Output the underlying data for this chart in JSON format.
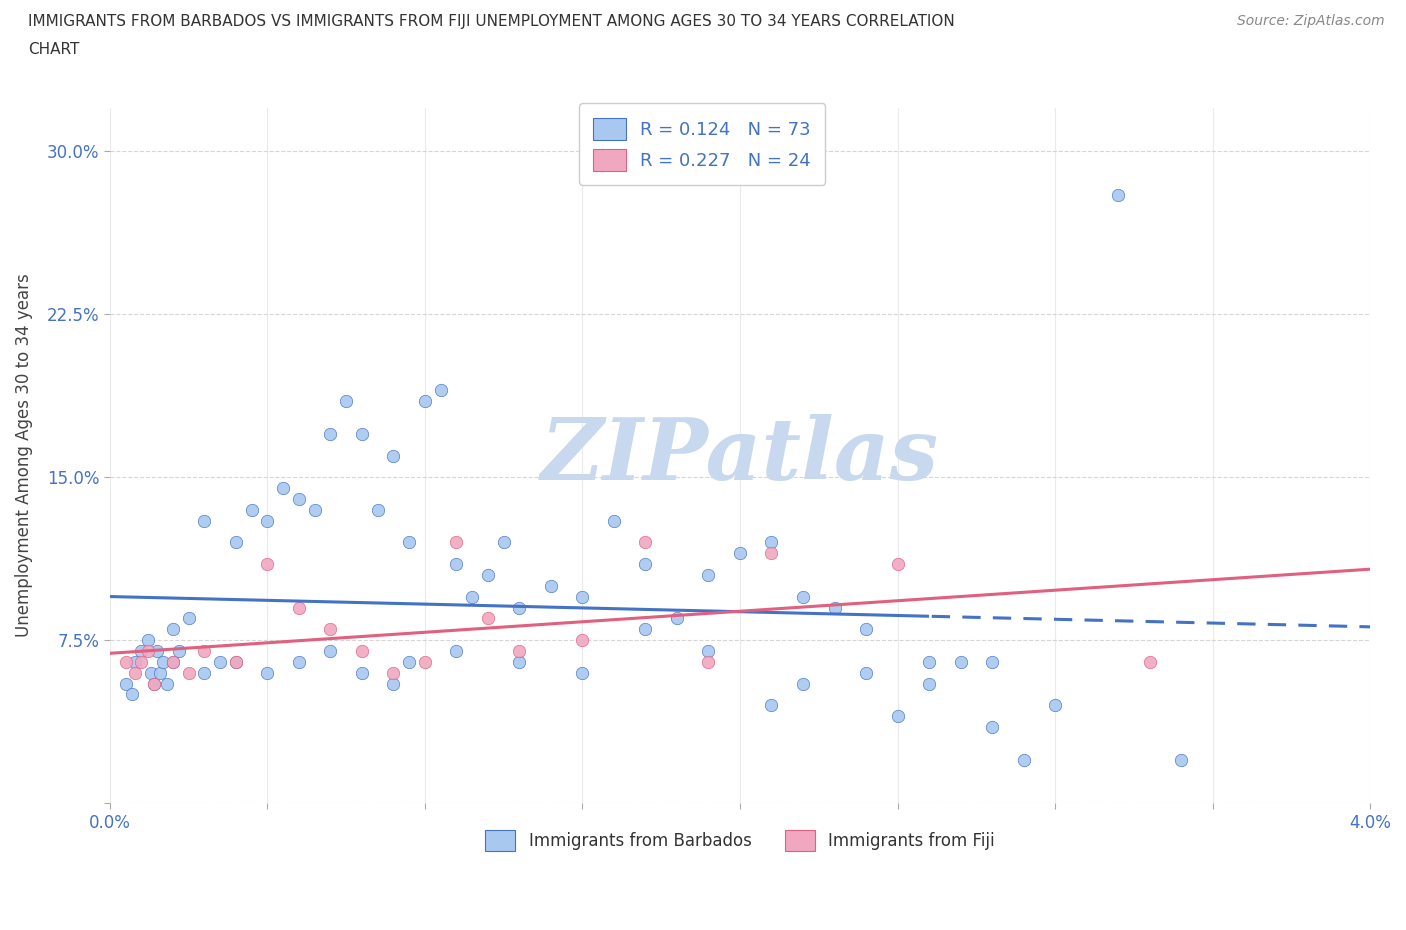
{
  "title_line1": "IMMIGRANTS FROM BARBADOS VS IMMIGRANTS FROM FIJI UNEMPLOYMENT AMONG AGES 30 TO 34 YEARS CORRELATION",
  "title_line2": "CHART",
  "source": "Source: ZipAtlas.com",
  "ylabel": "Unemployment Among Ages 30 to 34 years",
  "xlim": [
    0.0,
    0.04
  ],
  "ylim": [
    0.0,
    0.32
  ],
  "R_barbados": 0.124,
  "N_barbados": 73,
  "R_fiji": 0.227,
  "N_fiji": 24,
  "color_barbados": "#a8c8f0",
  "color_fiji": "#f0a8c0",
  "trendline_barbados": "#4472c4",
  "trendline_fiji": "#e06080",
  "watermark": "ZIPatlas",
  "watermark_color": "#c8d8ee",
  "legend_label_barbados": "Immigrants from Barbados",
  "legend_label_fiji": "Immigrants from Fiji",
  "barbados_x": [
    0.0005,
    0.0007,
    0.0008,
    0.001,
    0.0012,
    0.0013,
    0.0014,
    0.0015,
    0.0016,
    0.0017,
    0.0018,
    0.002,
    0.002,
    0.0022,
    0.0025,
    0.003,
    0.003,
    0.0035,
    0.004,
    0.004,
    0.0045,
    0.005,
    0.005,
    0.0055,
    0.006,
    0.006,
    0.0065,
    0.007,
    0.007,
    0.0075,
    0.008,
    0.008,
    0.0085,
    0.009,
    0.009,
    0.0095,
    0.0095,
    0.01,
    0.0105,
    0.011,
    0.011,
    0.0115,
    0.012,
    0.0125,
    0.013,
    0.013,
    0.014,
    0.015,
    0.015,
    0.016,
    0.017,
    0.017,
    0.018,
    0.019,
    0.019,
    0.02,
    0.021,
    0.021,
    0.022,
    0.022,
    0.023,
    0.024,
    0.024,
    0.025,
    0.026,
    0.026,
    0.027,
    0.028,
    0.028,
    0.029,
    0.03,
    0.032,
    0.034
  ],
  "barbados_y": [
    0.055,
    0.05,
    0.065,
    0.07,
    0.075,
    0.06,
    0.055,
    0.07,
    0.06,
    0.065,
    0.055,
    0.08,
    0.065,
    0.07,
    0.085,
    0.06,
    0.13,
    0.065,
    0.065,
    0.12,
    0.135,
    0.06,
    0.13,
    0.145,
    0.065,
    0.14,
    0.135,
    0.07,
    0.17,
    0.185,
    0.06,
    0.17,
    0.135,
    0.055,
    0.16,
    0.065,
    0.12,
    0.185,
    0.19,
    0.07,
    0.11,
    0.095,
    0.105,
    0.12,
    0.065,
    0.09,
    0.1,
    0.06,
    0.095,
    0.13,
    0.08,
    0.11,
    0.085,
    0.07,
    0.105,
    0.115,
    0.045,
    0.12,
    0.055,
    0.095,
    0.09,
    0.06,
    0.08,
    0.04,
    0.055,
    0.065,
    0.065,
    0.035,
    0.065,
    0.02,
    0.045,
    0.28,
    0.02
  ],
  "fiji_x": [
    0.0005,
    0.0008,
    0.001,
    0.0012,
    0.0014,
    0.002,
    0.0025,
    0.003,
    0.004,
    0.005,
    0.006,
    0.007,
    0.008,
    0.009,
    0.01,
    0.011,
    0.012,
    0.013,
    0.015,
    0.017,
    0.019,
    0.021,
    0.025,
    0.033
  ],
  "fiji_y": [
    0.065,
    0.06,
    0.065,
    0.07,
    0.055,
    0.065,
    0.06,
    0.07,
    0.065,
    0.11,
    0.09,
    0.08,
    0.07,
    0.06,
    0.065,
    0.12,
    0.085,
    0.07,
    0.075,
    0.12,
    0.065,
    0.115,
    0.11,
    0.065
  ]
}
